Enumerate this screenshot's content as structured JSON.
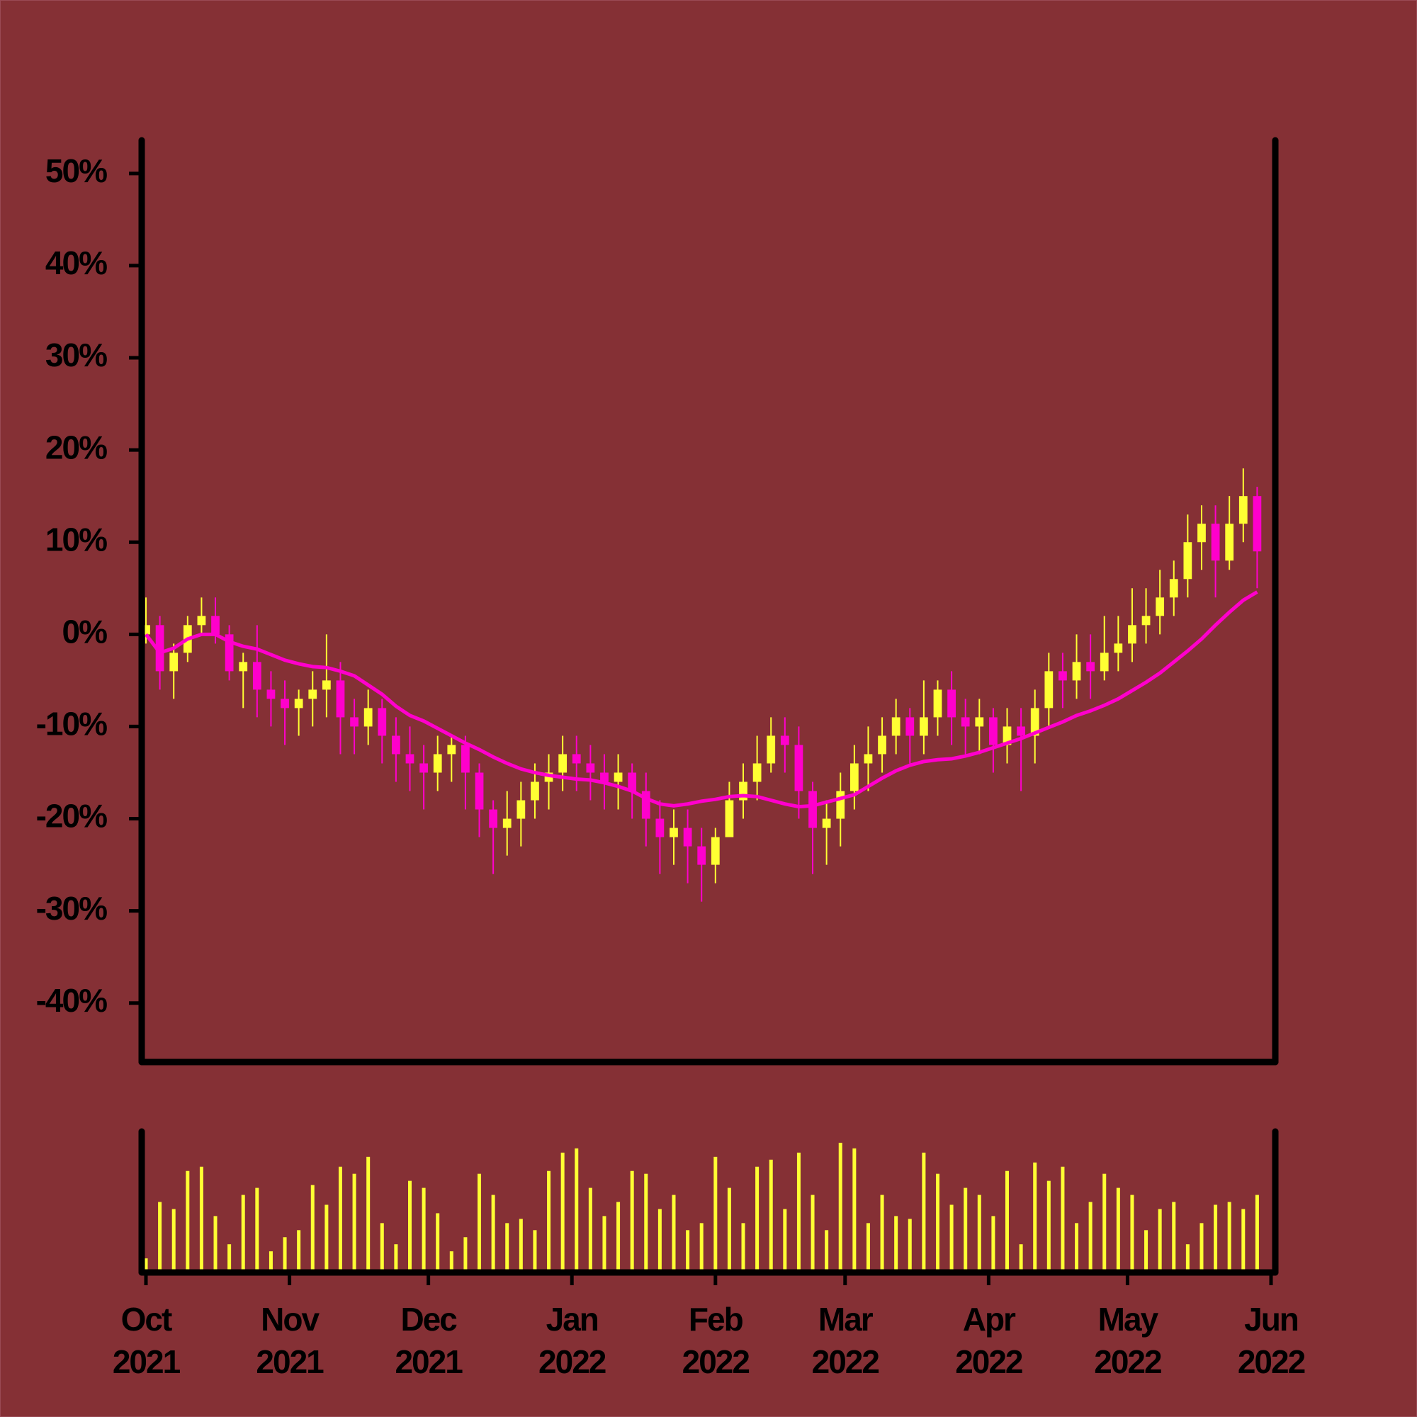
{
  "chart_data": {
    "type": "candlestick",
    "x": [
      0,
      3,
      6,
      9,
      12,
      15,
      18,
      21,
      24,
      27,
      30,
      33,
      36,
      39,
      42,
      45,
      48,
      51,
      54,
      57,
      60,
      63,
      66,
      69,
      72,
      75,
      78,
      81,
      84,
      87,
      90,
      93,
      96,
      99,
      102,
      105,
      108,
      111,
      114,
      117,
      120,
      123,
      126,
      129,
      132,
      135,
      138,
      141,
      144,
      147,
      150,
      153,
      156,
      159,
      162,
      165,
      168,
      171,
      174,
      177,
      180,
      183,
      186,
      189,
      192,
      195,
      198,
      201,
      204,
      207,
      210,
      213,
      216,
      219,
      222,
      225,
      228,
      231,
      234,
      237,
      240
    ],
    "open": [
      0,
      1,
      -4,
      -2,
      1,
      2,
      0,
      -4,
      -3,
      -6,
      -7,
      -8,
      -7,
      -6,
      -5,
      -9,
      -10,
      -8,
      -11,
      -13,
      -14,
      -15,
      -13,
      -12,
      -15,
      -19,
      -21,
      -20,
      -18,
      -16,
      -15,
      -13,
      -14,
      -15,
      -16,
      -15,
      -17,
      -20,
      -22,
      -21,
      -23,
      -25,
      -22,
      -18,
      -16,
      -14,
      -11,
      -12,
      -17,
      -21,
      -20,
      -17,
      -14,
      -13,
      -11,
      -9,
      -11,
      -9,
      -6,
      -9,
      -10,
      -9,
      -12,
      -10,
      -11,
      -8,
      -4,
      -5,
      -3,
      -4,
      -2,
      -1,
      1,
      2,
      4,
      6,
      10,
      12,
      8,
      12,
      15
    ],
    "high": [
      4,
      2,
      -1,
      2,
      4,
      4,
      1,
      -2,
      1,
      -4,
      -5,
      -6,
      -4,
      0,
      -3,
      -7,
      -6,
      -7,
      -9,
      -10,
      -12,
      -11,
      -11,
      -11,
      -14,
      -18,
      -17,
      -16,
      -14,
      -13,
      -11,
      -11,
      -12,
      -13,
      -13,
      -14,
      -15,
      -18,
      -19,
      -19,
      -21,
      -21,
      -16,
      -14,
      -11,
      -9,
      -9,
      -10,
      -16,
      -18,
      -15,
      -12,
      -10,
      -9,
      -7,
      -8,
      -5,
      -5,
      -4,
      -7,
      -7,
      -8,
      -8,
      -8,
      -6,
      -2,
      -2,
      0,
      0,
      2,
      2,
      5,
      5,
      7,
      8,
      13,
      14,
      14,
      15,
      18,
      16
    ],
    "low": [
      -1,
      -6,
      -7,
      -3,
      0,
      -1,
      -5,
      -8,
      -9,
      -10,
      -12,
      -11,
      -10,
      -9,
      -13,
      -13,
      -12,
      -14,
      -16,
      -17,
      -19,
      -17,
      -16,
      -19,
      -22,
      -26,
      -24,
      -23,
      -20,
      -19,
      -17,
      -17,
      -18,
      -19,
      -19,
      -20,
      -23,
      -26,
      -25,
      -27,
      -29,
      -27,
      -22,
      -20,
      -18,
      -15,
      -15,
      -20,
      -26,
      -25,
      -23,
      -19,
      -17,
      -15,
      -13,
      -14,
      -13,
      -11,
      -12,
      -13,
      -13,
      -15,
      -14,
      -17,
      -14,
      -10,
      -8,
      -7,
      -7,
      -5,
      -4,
      -3,
      -1,
      0,
      2,
      4,
      7,
      4,
      7,
      10,
      5
    ],
    "close": [
      1,
      -4,
      -2,
      1,
      2,
      0,
      -4,
      -3,
      -6,
      -7,
      -8,
      -7,
      -6,
      -5,
      -9,
      -10,
      -8,
      -11,
      -13,
      -14,
      -15,
      -13,
      -12,
      -15,
      -19,
      -21,
      -20,
      -18,
      -16,
      -15,
      -13,
      -14,
      -15,
      -16,
      -15,
      -17,
      -20,
      -22,
      -21,
      -23,
      -25,
      -22,
      -18,
      -16,
      -14,
      -11,
      -12,
      -17,
      -21,
      -20,
      -17,
      -14,
      -13,
      -11,
      -9,
      -11,
      -9,
      -6,
      -9,
      -10,
      -9,
      -12,
      -10,
      -11,
      -8,
      -4,
      -5,
      -3,
      -4,
      -2,
      -1,
      1,
      2,
      4,
      6,
      10,
      12,
      8,
      12,
      15,
      9
    ],
    "up_color": "#ffff33",
    "down_color": "#ff00cc",
    "ma": {
      "color": "#ff00cc",
      "values": [
        0,
        -2,
        -1.5,
        -0.5,
        0,
        0,
        -0.8,
        -1.3,
        -1.6,
        -2.2,
        -2.8,
        -3.2,
        -3.5,
        -3.6,
        -4,
        -4.5,
        -5.5,
        -6.5,
        -7.8,
        -8.8,
        -9.4,
        -10.2,
        -11,
        -11.8,
        -12.5,
        -13.3,
        -14,
        -14.6,
        -15,
        -15.3,
        -15.5,
        -15.7,
        -15.8,
        -16.1,
        -16.5,
        -17,
        -17.8,
        -18.4,
        -18.6,
        -18.4,
        -18.1,
        -17.9,
        -17.6,
        -17.5,
        -17.6,
        -18,
        -18.4,
        -18.7,
        -18.6,
        -18.2,
        -17.8,
        -17.4,
        -16.5,
        -15.6,
        -14.8,
        -14.2,
        -13.8,
        -13.6,
        -13.5,
        -13.2,
        -12.8,
        -12.3,
        -11.8,
        -11.3,
        -10.7,
        -10.1,
        -9.5,
        -8.8,
        -8.3,
        -7.7,
        -7,
        -6.1,
        -5.2,
        -4.2,
        -3,
        -1.8,
        -0.5,
        1,
        2.4,
        3.7,
        4.6
      ]
    },
    "volume": {
      "color": "#ffff33",
      "ylim": [
        0,
        100
      ],
      "values": [
        10,
        50,
        45,
        72,
        75,
        40,
        20,
        55,
        60,
        15,
        25,
        30,
        62,
        48,
        75,
        70,
        82,
        35,
        20,
        65,
        60,
        42,
        15,
        25,
        70,
        55,
        35,
        38,
        30,
        72,
        85,
        88,
        60,
        40,
        50,
        72,
        70,
        45,
        55,
        30,
        35,
        82,
        60,
        35,
        75,
        80,
        45,
        85,
        55,
        30,
        92,
        88,
        35,
        55,
        40,
        38,
        85,
        70,
        48,
        60,
        55,
        40,
        72,
        20,
        78,
        65,
        75,
        35,
        50,
        70,
        60,
        55,
        30,
        45,
        50,
        20,
        35,
        48,
        50,
        45,
        55
      ]
    },
    "xlim": [
      0,
      243
    ],
    "xticks": [
      {
        "value": 0,
        "label": [
          "Oct",
          "2021"
        ]
      },
      {
        "value": 31,
        "label": [
          "Nov",
          "2021"
        ]
      },
      {
        "value": 61,
        "label": [
          "Dec",
          "2021"
        ]
      },
      {
        "value": 92,
        "label": [
          "Jan",
          "2022"
        ]
      },
      {
        "value": 123,
        "label": [
          "Feb",
          "2022"
        ]
      },
      {
        "value": 151,
        "label": [
          "Mar",
          "2022"
        ]
      },
      {
        "value": 182,
        "label": [
          "Apr",
          "2022"
        ]
      },
      {
        "value": 212,
        "label": [
          "May",
          "2022"
        ]
      },
      {
        "value": 243,
        "label": [
          "Jun",
          "2022"
        ]
      }
    ],
    "ylim": [
      -46.4,
      53.6
    ],
    "yticks": [
      {
        "value": -40,
        "label": "-40%"
      },
      {
        "value": -30,
        "label": "-30%"
      },
      {
        "value": -20,
        "label": "-20%"
      },
      {
        "value": -10,
        "label": "-10%"
      },
      {
        "value": 0,
        "label": "0%"
      },
      {
        "value": 10,
        "label": "10%"
      },
      {
        "value": 20,
        "label": "20%"
      },
      {
        "value": 30,
        "label": "30%"
      },
      {
        "value": 40,
        "label": "40%"
      },
      {
        "value": 50,
        "label": "50%"
      }
    ]
  }
}
